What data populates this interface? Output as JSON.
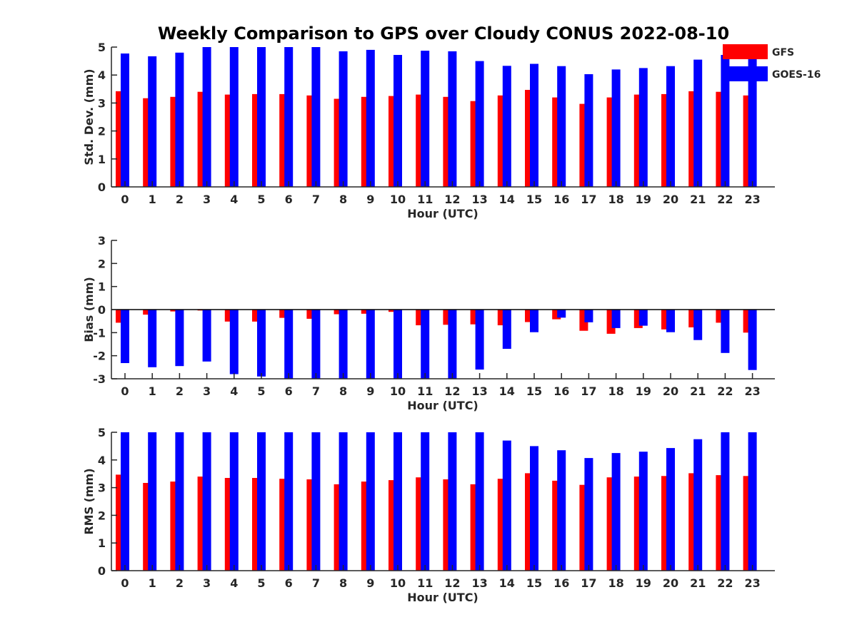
{
  "title": "Weekly Comparison to GPS over Cloudy CONUS 2022-08-10",
  "colors": {
    "GFS": "#ff0000",
    "GOES-16": "#0000ff"
  },
  "legend": {
    "placement": "top-right",
    "entries": [
      "GFS",
      "GOES-16"
    ]
  },
  "chart_data": [
    {
      "type": "bar",
      "xlabel": "Hour (UTC)",
      "ylabel": "Std. Dev. (mm)",
      "ylim": [
        0,
        5
      ],
      "yticks": [
        0,
        1,
        2,
        3,
        4,
        5
      ],
      "categories": [
        "0",
        "1",
        "2",
        "3",
        "4",
        "5",
        "6",
        "7",
        "8",
        "9",
        "10",
        "11",
        "12",
        "13",
        "14",
        "15",
        "16",
        "17",
        "18",
        "19",
        "20",
        "21",
        "22",
        "23"
      ],
      "series": [
        {
          "name": "GFS",
          "values": [
            3.42,
            3.17,
            3.22,
            3.4,
            3.3,
            3.32,
            3.32,
            3.27,
            3.15,
            3.22,
            3.25,
            3.3,
            3.22,
            3.07,
            3.27,
            3.47,
            3.2,
            2.97,
            3.2,
            3.3,
            3.32,
            3.42,
            3.4,
            3.27
          ]
        },
        {
          "name": "GOES-16",
          "values": [
            4.77,
            4.67,
            4.8,
            5.0,
            5.0,
            5.0,
            5.0,
            5.0,
            4.85,
            4.9,
            4.72,
            4.87,
            4.85,
            4.5,
            4.33,
            4.4,
            4.32,
            4.03,
            4.2,
            4.25,
            4.32,
            4.55,
            4.72,
            4.6
          ]
        }
      ]
    },
    {
      "type": "bar",
      "xlabel": "Hour (UTC)",
      "ylabel": "Bias (mm)",
      "ylim": [
        -3,
        3
      ],
      "yticks": [
        -3,
        -2,
        -1,
        0,
        1,
        2,
        3
      ],
      "categories": [
        "0",
        "1",
        "2",
        "3",
        "4",
        "5",
        "6",
        "7",
        "8",
        "9",
        "10",
        "11",
        "12",
        "13",
        "14",
        "15",
        "16",
        "17",
        "18",
        "19",
        "20",
        "21",
        "22",
        "23"
      ],
      "series": [
        {
          "name": "GFS",
          "values": [
            -0.57,
            -0.22,
            -0.08,
            -0.04,
            -0.52,
            -0.52,
            -0.36,
            -0.4,
            -0.2,
            -0.18,
            -0.1,
            -0.68,
            -0.66,
            -0.64,
            -0.68,
            -0.54,
            -0.42,
            -0.92,
            -1.05,
            -0.8,
            -0.86,
            -0.77,
            -0.57,
            -1.0
          ]
        },
        {
          "name": "GOES-16",
          "values": [
            -2.32,
            -2.5,
            -2.45,
            -2.25,
            -2.8,
            -2.9,
            -3.0,
            -3.0,
            -3.0,
            -3.0,
            -3.0,
            -3.0,
            -3.0,
            -2.6,
            -1.7,
            -0.98,
            -0.35,
            -0.55,
            -0.8,
            -0.7,
            -0.98,
            -1.32,
            -1.88,
            -2.62
          ]
        }
      ]
    },
    {
      "type": "bar",
      "xlabel": "Hour (UTC)",
      "ylabel": "RMS (mm)",
      "ylim": [
        0,
        5
      ],
      "yticks": [
        0,
        1,
        2,
        3,
        4,
        5
      ],
      "categories": [
        "0",
        "1",
        "2",
        "3",
        "4",
        "5",
        "6",
        "7",
        "8",
        "9",
        "10",
        "11",
        "12",
        "13",
        "14",
        "15",
        "16",
        "17",
        "18",
        "19",
        "20",
        "21",
        "22",
        "23"
      ],
      "series": [
        {
          "name": "GFS",
          "values": [
            3.47,
            3.17,
            3.22,
            3.4,
            3.35,
            3.35,
            3.32,
            3.3,
            3.12,
            3.22,
            3.27,
            3.37,
            3.3,
            3.12,
            3.32,
            3.52,
            3.25,
            3.1,
            3.37,
            3.4,
            3.42,
            3.52,
            3.45,
            3.42
          ]
        },
        {
          "name": "GOES-16",
          "values": [
            5.0,
            5.0,
            5.0,
            5.0,
            5.0,
            5.0,
            5.0,
            5.0,
            5.0,
            5.0,
            5.0,
            5.0,
            5.0,
            5.0,
            4.7,
            4.5,
            4.35,
            4.07,
            4.25,
            4.3,
            4.43,
            4.75,
            5.0,
            5.0
          ]
        }
      ]
    }
  ]
}
